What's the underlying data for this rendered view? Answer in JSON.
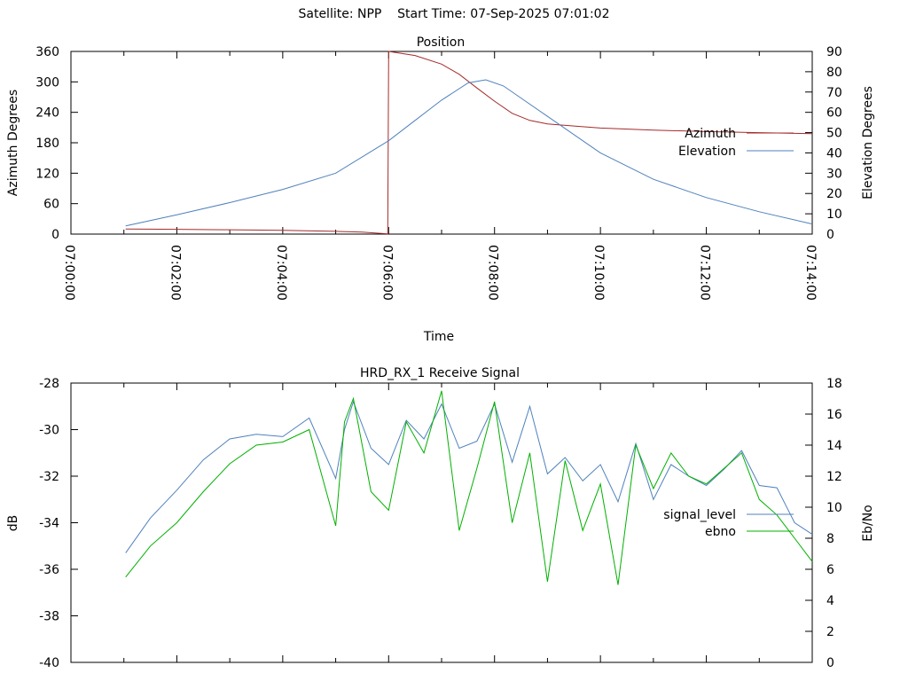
{
  "header": {
    "suptitle": "Satellite: NPP    Start Time: 07-Sep-2025 07:01:02"
  },
  "chart_data": [
    {
      "type": "line",
      "title": "Position",
      "xlabel": "Time",
      "ylabel": "Azimuth Degrees",
      "y2label": "Elevation Degrees",
      "xlim": [
        "07:00:00",
        "07:14:00"
      ],
      "xticks": [
        "07:00:00",
        "07:02:00",
        "07:04:00",
        "07:06:00",
        "07:08:00",
        "07:10:00",
        "07:12:00",
        "07:14:00"
      ],
      "ylim": [
        0,
        360
      ],
      "yticks": [
        "0",
        "60",
        "120",
        "180",
        "240",
        "300",
        "360"
      ],
      "y2lim": [
        0,
        90
      ],
      "y2ticks": [
        "0",
        "10",
        "20",
        "30",
        "40",
        "50",
        "60",
        "70",
        "80",
        "90"
      ],
      "grid": false,
      "legend_position": "right",
      "series": [
        {
          "name": "Azimuth",
          "axis": "y",
          "color": "#a52a2a",
          "x": [
            "07:01:02",
            "07:02:00",
            "07:03:00",
            "07:04:00",
            "07:05:00",
            "07:05:30",
            "07:05:59",
            "07:06:00",
            "07:06:30",
            "07:07:00",
            "07:07:20",
            "07:07:40",
            "07:08:00",
            "07:08:20",
            "07:08:40",
            "07:09:00",
            "07:09:30",
            "07:10:00",
            "07:11:00",
            "07:12:00",
            "07:13:00",
            "07:14:00"
          ],
          "y": [
            10,
            9.5,
            8.5,
            7.5,
            5.5,
            4,
            0.5,
            360,
            352,
            335,
            315,
            288,
            262,
            238,
            224,
            217,
            213,
            209,
            205,
            202,
            200,
            198
          ]
        },
        {
          "name": "Elevation",
          "axis": "y2",
          "color": "#4f81bd",
          "x": [
            "07:01:02",
            "07:02:00",
            "07:03:00",
            "07:04:00",
            "07:05:00",
            "07:06:00",
            "07:06:30",
            "07:07:00",
            "07:07:30",
            "07:07:50",
            "07:08:10",
            "07:08:30",
            "07:09:00",
            "07:10:00",
            "07:11:00",
            "07:12:00",
            "07:13:00",
            "07:14:00"
          ],
          "y": [
            4,
            9.5,
            15.5,
            22,
            30,
            46,
            56,
            66,
            74.5,
            76,
            73,
            67,
            58,
            40,
            27,
            18,
            11,
            5
          ]
        }
      ]
    },
    {
      "type": "line",
      "title": "HRD_RX_1 Receive Signal",
      "xlabel": "",
      "ylabel": "dB",
      "y2label": "Eb/No",
      "xlim": [
        "07:00:00",
        "07:14:00"
      ],
      "ylim": [
        -40,
        -28
      ],
      "yticks": [
        "-28",
        "-30",
        "-32",
        "-34",
        "-36",
        "-38",
        "-40"
      ],
      "y2lim": [
        0,
        18
      ],
      "y2ticks": [
        "0",
        "2",
        "4",
        "6",
        "8",
        "10",
        "12",
        "14",
        "16",
        "18"
      ],
      "grid": false,
      "legend_position": "right",
      "series": [
        {
          "name": "signal_level",
          "axis": "y",
          "color": "#4f81bd",
          "x": [
            "07:01:02",
            "07:01:30",
            "07:02:00",
            "07:02:30",
            "07:03:00",
            "07:03:30",
            "07:04:00",
            "07:04:30",
            "07:05:00",
            "07:05:10",
            "07:05:20",
            "07:05:40",
            "07:06:00",
            "07:06:20",
            "07:06:40",
            "07:07:00",
            "07:07:20",
            "07:07:40",
            "07:08:00",
            "07:08:20",
            "07:08:40",
            "07:09:00",
            "07:09:20",
            "07:09:40",
            "07:10:00",
            "07:10:20",
            "07:10:40",
            "07:11:00",
            "07:11:20",
            "07:11:40",
            "07:12:00",
            "07:12:20",
            "07:12:40",
            "07:13:00",
            "07:13:20",
            "07:13:40",
            "07:14:00"
          ],
          "y": [
            -35.3,
            -33.8,
            -32.6,
            -31.3,
            -30.4,
            -30.2,
            -30.3,
            -29.5,
            -32.1,
            -30,
            -28.8,
            -30.8,
            -31.5,
            -29.6,
            -30.4,
            -28.9,
            -30.8,
            -30.5,
            -28.9,
            -31.4,
            -29,
            -31.9,
            -31.2,
            -32.2,
            -31.5,
            -33.1,
            -30.6,
            -33,
            -31.5,
            -32,
            -32.4,
            -31.7,
            -30.9,
            -32.4,
            -32.5,
            -34,
            -34.5
          ]
        },
        {
          "name": "ebno",
          "axis": "y2",
          "color": "#00b000",
          "x": [
            "07:01:02",
            "07:01:30",
            "07:02:00",
            "07:02:30",
            "07:03:00",
            "07:03:30",
            "07:04:00",
            "07:04:30",
            "07:05:00",
            "07:05:10",
            "07:05:20",
            "07:05:40",
            "07:06:00",
            "07:06:20",
            "07:06:40",
            "07:07:00",
            "07:07:20",
            "07:07:40",
            "07:08:00",
            "07:08:20",
            "07:08:40",
            "07:09:00",
            "07:09:20",
            "07:09:40",
            "07:10:00",
            "07:10:20",
            "07:10:40",
            "07:11:00",
            "07:11:20",
            "07:11:40",
            "07:12:00",
            "07:12:20",
            "07:12:40",
            "07:13:00",
            "07:13:20",
            "07:13:40",
            "07:14:00"
          ],
          "y": [
            5.5,
            7.5,
            9,
            11,
            12.8,
            14,
            14.2,
            15,
            8.8,
            15.5,
            17,
            11,
            9.8,
            15.5,
            13.5,
            17.5,
            8.5,
            12.5,
            16.8,
            9,
            13.5,
            5.2,
            13,
            8.5,
            11.5,
            5,
            14,
            11.2,
            13.5,
            12,
            11.5,
            12.5,
            13.5,
            10.5,
            9.5,
            8,
            6.5
          ]
        }
      ]
    }
  ]
}
